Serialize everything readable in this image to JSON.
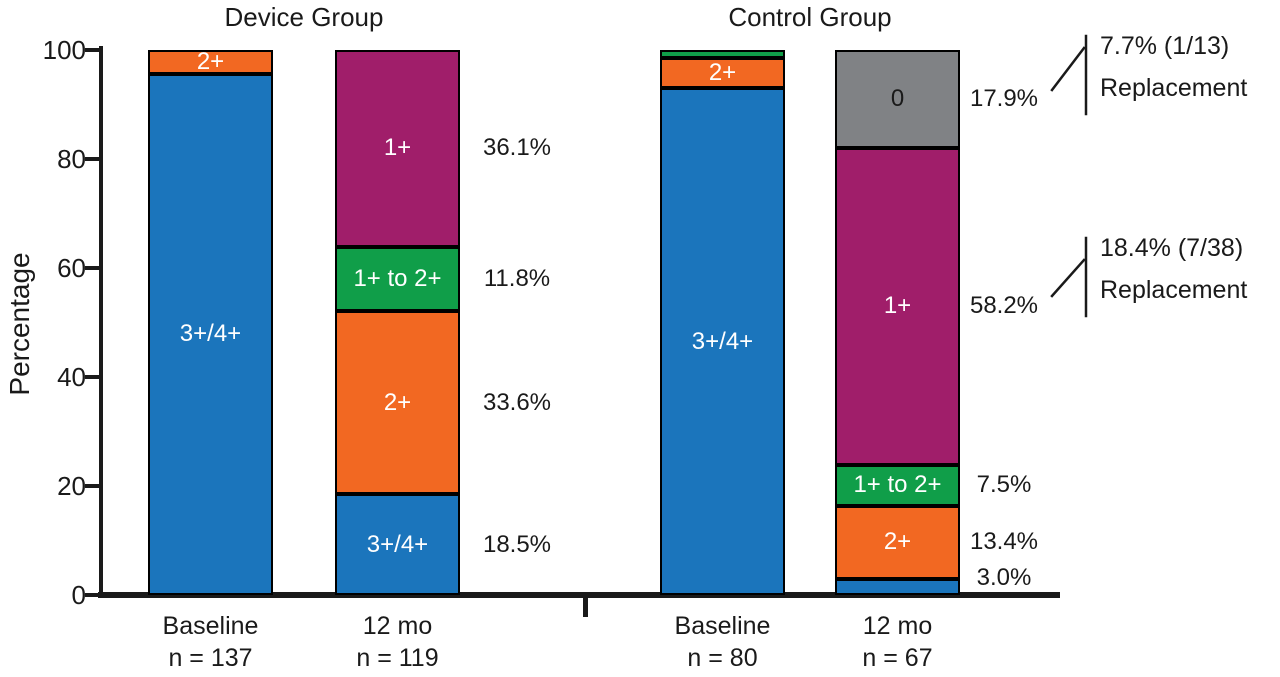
{
  "chart_data": {
    "type": "bar",
    "variant": "stacked",
    "ylabel": "Percentage",
    "ylim": [
      0,
      100
    ],
    "yticks": [
      0,
      20,
      40,
      60,
      80,
      100
    ],
    "grid": false,
    "legend": "none",
    "colors": {
      "3+/4+": "#1b75bc",
      "2+": "#f26822",
      "1+ to 2+": "#109e49",
      "1+": "#a01e6a",
      "0": "#808285"
    },
    "text_colors": {
      "3+/4+": "#ffffff",
      "2+": "#ffffff",
      "1+ to 2+": "#ffffff",
      "1+": "#ffffff",
      "0": "#1a1a1a"
    },
    "groups": [
      {
        "title": "Device Group",
        "bars": [
          {
            "xlabel": "Baseline",
            "nlabel": "n = 137",
            "segments": [
              {
                "grade": "3+/4+",
                "value": 95.6,
                "label": "3+/4+",
                "pct_label": ""
              },
              {
                "grade": "2+",
                "value": 4.4,
                "label": "2+",
                "pct_label": ""
              }
            ]
          },
          {
            "xlabel": "12 mo",
            "nlabel": "n = 119",
            "segments": [
              {
                "grade": "3+/4+",
                "value": 18.5,
                "label": "3+/4+",
                "pct_label": "18.5%"
              },
              {
                "grade": "2+",
                "value": 33.6,
                "label": "2+",
                "pct_label": "33.6%"
              },
              {
                "grade": "1+ to 2+",
                "value": 11.8,
                "label": "1+ to 2+",
                "pct_label": "11.8%"
              },
              {
                "grade": "1+",
                "value": 36.1,
                "label": "1+",
                "pct_label": "36.1%"
              }
            ]
          }
        ]
      },
      {
        "title": "Control Group",
        "bars": [
          {
            "xlabel": "Baseline",
            "nlabel": "n = 80",
            "segments": [
              {
                "grade": "3+/4+",
                "value": 93.0,
                "label": "3+/4+",
                "pct_label": ""
              },
              {
                "grade": "2+",
                "value": 5.5,
                "label": "2+",
                "pct_label": ""
              },
              {
                "grade": "1+ to 2+",
                "value": 1.5,
                "label": "",
                "pct_label": ""
              }
            ]
          },
          {
            "xlabel": "12 mo",
            "nlabel": "n = 67",
            "segments": [
              {
                "grade": "3+/4+",
                "value": 3.0,
                "label": "",
                "pct_label": "3.0%"
              },
              {
                "grade": "2+",
                "value": 13.4,
                "label": "2+",
                "pct_label": "13.4%"
              },
              {
                "grade": "1+ to 2+",
                "value": 7.5,
                "label": "1+ to 2+",
                "pct_label": "7.5%"
              },
              {
                "grade": "1+",
                "value": 58.2,
                "label": "1+",
                "pct_label": "58.2%"
              },
              {
                "grade": "0",
                "value": 17.9,
                "label": "0",
                "pct_label": "17.9%"
              }
            ]
          }
        ]
      }
    ],
    "annotations": [
      {
        "line1": "7.7% (1/13)",
        "line2": "Replacement"
      },
      {
        "line1": "18.4% (7/38)",
        "line2": "Replacement"
      }
    ]
  }
}
